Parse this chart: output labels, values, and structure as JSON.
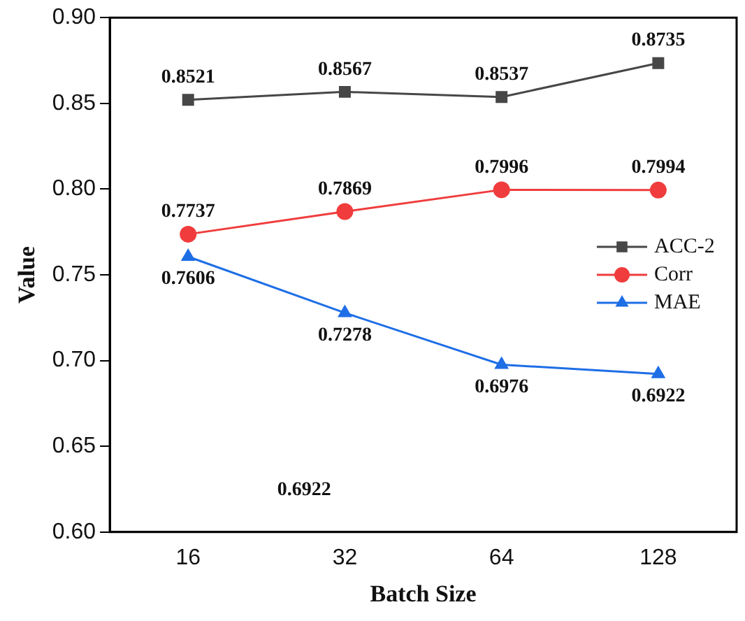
{
  "chart_data": {
    "type": "line",
    "xlabel": "Batch Size",
    "ylabel": "Value",
    "categories": [
      "16",
      "32",
      "64",
      "128"
    ],
    "series": [
      {
        "name": "ACC-2",
        "color": "#474747",
        "marker": "square",
        "values": [
          0.8521,
          0.8567,
          0.8537,
          0.8735
        ]
      },
      {
        "name": "Corr",
        "color": "#f03c3c",
        "marker": "circle",
        "values": [
          0.7737,
          0.7869,
          0.7996,
          0.7994
        ]
      },
      {
        "name": "MAE",
        "color": "#1e6ee6",
        "marker": "triangle",
        "values": [
          0.7606,
          0.7278,
          0.6976,
          0.6922
        ]
      }
    ],
    "ylim": [
      0.6,
      0.9
    ],
    "yticks": [
      {
        "value": 0.6,
        "label": "0.60"
      },
      0.65,
      {
        "value": 0.7,
        "label": "0.70"
      },
      0.75,
      {
        "value": 0.8,
        "label": "0.80"
      },
      0.85,
      {
        "value": 0.9,
        "label": "0.90"
      }
    ],
    "data_labels": true,
    "legend": "right",
    "grid": false,
    "annotations": [
      "0.6922"
    ]
  }
}
